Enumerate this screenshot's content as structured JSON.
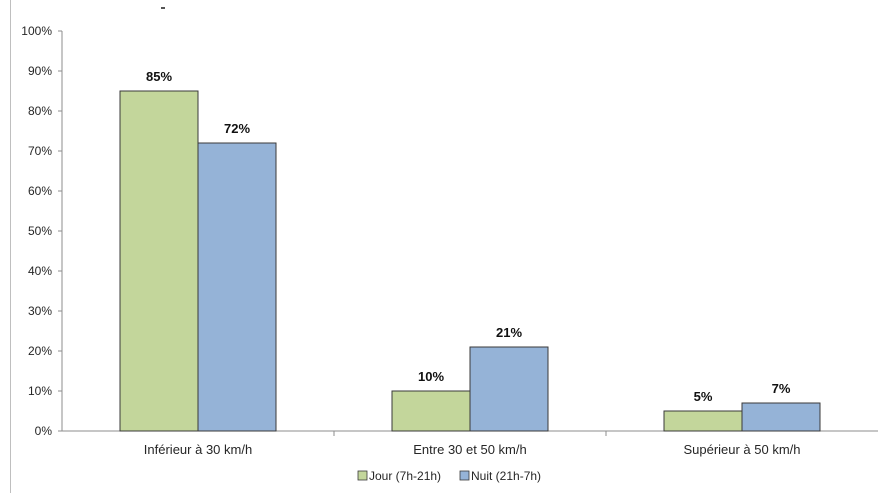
{
  "chart_data": {
    "type": "bar",
    "categories": [
      "Inférieur à 30 km/h",
      "Entre 30 et 50 km/h",
      "Supérieur à 50 km/h"
    ],
    "series": [
      {
        "name": "Jour (7h-21h)",
        "values": [
          85,
          10,
          5
        ],
        "labels": [
          "85%",
          "10%",
          "5%"
        ],
        "color": "#c3d69b"
      },
      {
        "name": "Nuit (21h-7h)",
        "values": [
          72,
          21,
          7
        ],
        "labels": [
          "72%",
          "21%",
          "7%"
        ],
        "color": "#95b3d7"
      }
    ],
    "ylim": [
      0,
      100
    ],
    "yticks": [
      "0%",
      "10%",
      "20%",
      "30%",
      "40%",
      "50%",
      "60%",
      "70%",
      "80%",
      "90%",
      "100%"
    ],
    "grid": false,
    "legend": "bottom",
    "title": "",
    "xlabel": "",
    "ylabel": ""
  }
}
